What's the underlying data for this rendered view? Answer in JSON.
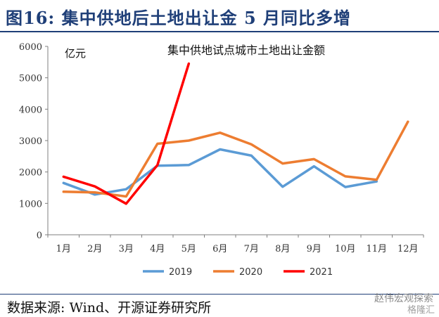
{
  "header": {
    "title": "图16:  集中供地后土地出让金 5 月同比多增"
  },
  "footer": {
    "source": "数据来源: Wind、开源证券研究所",
    "watermark_line1": "赵伟宏观探索",
    "watermark_line2": "格隆汇"
  },
  "colors": {
    "s2019": "#5b9bd5",
    "s2020": "#ed7d31",
    "s2021": "#ff0000",
    "axis": "#7f7f7f",
    "title": "#1f3f78"
  },
  "chart_data": {
    "type": "line",
    "title": "集中供地试点城市土地出让金额",
    "ylabel": "亿元",
    "xlabel": "",
    "categories": [
      "1月",
      "2月",
      "3月",
      "4月",
      "5月",
      "6月",
      "7月",
      "8月",
      "9月",
      "10月",
      "11月",
      "12月"
    ],
    "ylim": [
      0,
      6000
    ],
    "yticks": [
      0,
      1000,
      2000,
      3000,
      4000,
      5000,
      6000
    ],
    "grid": false,
    "legend_position": "bottom",
    "series": [
      {
        "name": "2019",
        "values": [
          1650,
          1280,
          1450,
          2200,
          2220,
          2720,
          2520,
          1530,
          2180,
          1520,
          1700,
          null
        ]
      },
      {
        "name": "2020",
        "values": [
          1370,
          1350,
          1220,
          2900,
          3000,
          3250,
          2880,
          2270,
          2410,
          1860,
          1750,
          3600
        ]
      },
      {
        "name": "2021",
        "values": [
          1850,
          1540,
          990,
          2220,
          5450,
          null,
          null,
          null,
          null,
          null,
          null,
          null
        ]
      }
    ]
  }
}
